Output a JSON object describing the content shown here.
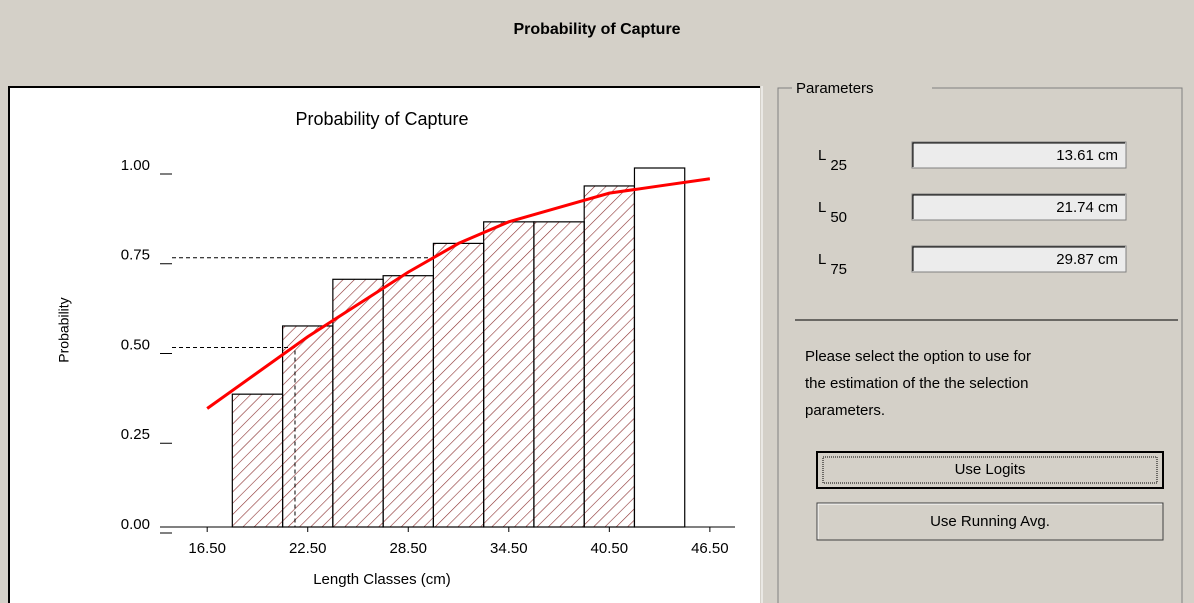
{
  "window_title": "Probability of Capture",
  "chart_data": {
    "type": "histogram",
    "title": "Probability of Capture",
    "x_label": "Length Classes (cm)",
    "y_label": "Probability",
    "bins": [
      18,
      21,
      24,
      27,
      30,
      33,
      36,
      39,
      42,
      45
    ],
    "values": [
      0.37,
      0.56,
      0.69,
      0.7,
      0.79,
      0.85,
      0.85,
      0.95,
      1.0
    ],
    "bar_color": "#8b2f2f",
    "curve": {
      "color": "#ff0000",
      "x": [
        16.5,
        19.5,
        22.5,
        25.5,
        28.5,
        31.5,
        34.5,
        37.5,
        40.5,
        43.5,
        46.5
      ],
      "values": [
        0.33,
        0.43,
        0.53,
        0.62,
        0.71,
        0.79,
        0.85,
        0.89,
        0.93,
        0.95,
        0.97
      ]
    },
    "reference_lines": [
      {
        "x": 21.74,
        "y": 0.5
      },
      {
        "x": 29.87,
        "y": 0.75
      }
    ],
    "xlim": [
      14.4,
      48
    ],
    "ylim": [
      0,
      1
    ],
    "xticks": [
      {
        "value": 16.5,
        "label": "16.50"
      },
      {
        "value": 22.5,
        "label": "22.50"
      },
      {
        "value": 28.5,
        "label": "28.50"
      },
      {
        "value": 34.5,
        "label": "34.50"
      },
      {
        "value": 40.5,
        "label": "40.50"
      },
      {
        "value": 46.5,
        "label": "46.50"
      }
    ],
    "yticks": [
      {
        "value": 0,
        "label": "0.00"
      },
      {
        "value": 0.25,
        "label": "0.25"
      },
      {
        "value": 0.5,
        "label": "0.50"
      },
      {
        "value": 0.75,
        "label": "0.75"
      },
      {
        "value": 1,
        "label": "1.00"
      }
    ]
  },
  "parameters": {
    "title": "Parameters",
    "items": [
      {
        "label": "L",
        "sub": "25",
        "value": "13.61 cm"
      },
      {
        "label": "L",
        "sub": "50",
        "value": "21.74 cm"
      },
      {
        "label": "L",
        "sub": "75",
        "value": "29.87 cm"
      }
    ]
  },
  "instructions": [
    "Please select the option to use for",
    "the estimation of the the selection",
    "parameters."
  ],
  "buttons": [
    "Use Logits",
    "Use Running Avg."
  ]
}
